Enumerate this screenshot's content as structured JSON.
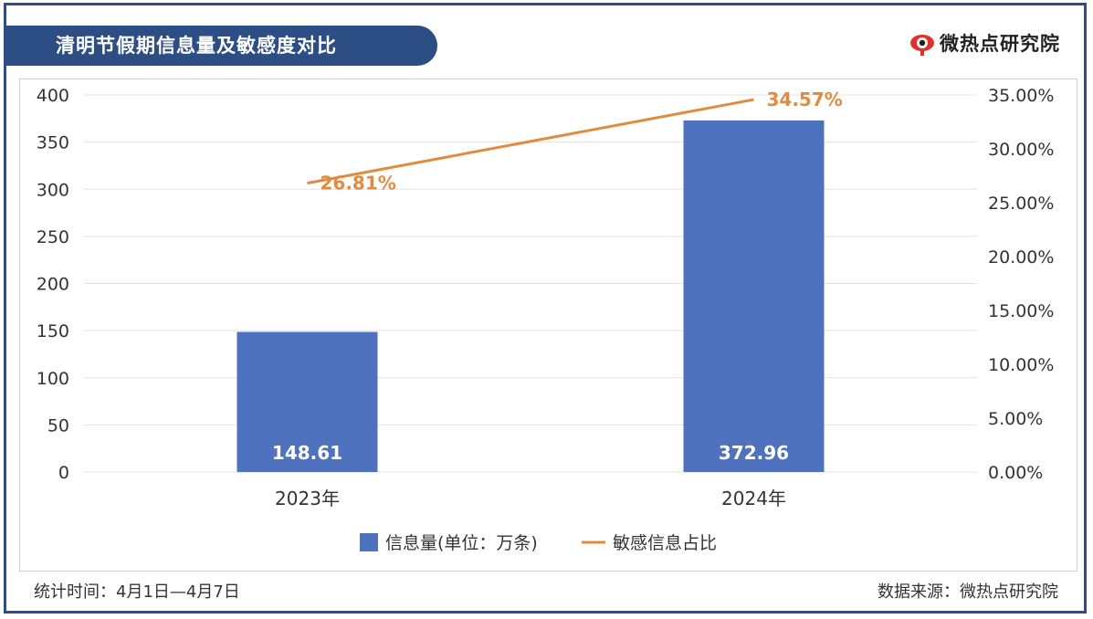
{
  "header": {
    "title": "清明节假期信息量及敏感度对比",
    "brand": "微热点研究院",
    "brand_icon": "weibo-eye-icon"
  },
  "footer": {
    "stat_time": "统计时间：4月1日—4月7日",
    "source": "数据来源：微热点研究院"
  },
  "colors": {
    "bar": "#4e72be",
    "line": "#e08b3f",
    "frame": "#2f4e86"
  },
  "chart_data": {
    "type": "bar",
    "categories": [
      "2023年",
      "2024年"
    ],
    "series": [
      {
        "name": "信息量(单位：万条)",
        "type": "bar",
        "axis": "left",
        "values": [
          148.61,
          372.96
        ],
        "labels": [
          "148.61",
          "372.96"
        ]
      },
      {
        "name": "敏感信息占比",
        "type": "line",
        "axis": "right",
        "values": [
          26.81,
          34.57
        ],
        "labels": [
          "26.81%",
          "34.57%"
        ]
      }
    ],
    "y_left": {
      "ylim": [
        0,
        400
      ],
      "ticks": [
        "0",
        "50",
        "100",
        "150",
        "200",
        "250",
        "300",
        "350",
        "400"
      ]
    },
    "y_right": {
      "ylim": [
        0,
        35
      ],
      "ticks": [
        "0.00%",
        "5.00%",
        "10.00%",
        "15.00%",
        "20.00%",
        "25.00%",
        "30.00%",
        "35.00%"
      ]
    },
    "grid": true,
    "legend_position": "bottom"
  }
}
